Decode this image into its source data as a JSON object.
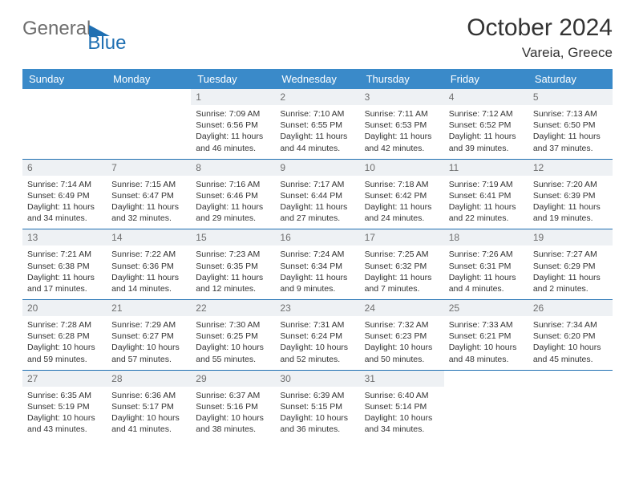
{
  "logo": {
    "word1": "General",
    "word2": "Blue"
  },
  "header": {
    "month_title": "October 2024",
    "location": "Vareia, Greece"
  },
  "calendar": {
    "weekday_labels": [
      "Sunday",
      "Monday",
      "Tuesday",
      "Wednesday",
      "Thursday",
      "Friday",
      "Saturday"
    ],
    "header_bg": "#3a8ac9",
    "header_text": "#ffffff",
    "daynum_bg": "#eef1f4",
    "border_color": "#1f6fb2",
    "cells": [
      null,
      null,
      {
        "n": "1",
        "sunrise": "Sunrise: 7:09 AM",
        "sunset": "Sunset: 6:56 PM",
        "day1": "Daylight: 11 hours",
        "day2": "and 46 minutes."
      },
      {
        "n": "2",
        "sunrise": "Sunrise: 7:10 AM",
        "sunset": "Sunset: 6:55 PM",
        "day1": "Daylight: 11 hours",
        "day2": "and 44 minutes."
      },
      {
        "n": "3",
        "sunrise": "Sunrise: 7:11 AM",
        "sunset": "Sunset: 6:53 PM",
        "day1": "Daylight: 11 hours",
        "day2": "and 42 minutes."
      },
      {
        "n": "4",
        "sunrise": "Sunrise: 7:12 AM",
        "sunset": "Sunset: 6:52 PM",
        "day1": "Daylight: 11 hours",
        "day2": "and 39 minutes."
      },
      {
        "n": "5",
        "sunrise": "Sunrise: 7:13 AM",
        "sunset": "Sunset: 6:50 PM",
        "day1": "Daylight: 11 hours",
        "day2": "and 37 minutes."
      },
      {
        "n": "6",
        "sunrise": "Sunrise: 7:14 AM",
        "sunset": "Sunset: 6:49 PM",
        "day1": "Daylight: 11 hours",
        "day2": "and 34 minutes."
      },
      {
        "n": "7",
        "sunrise": "Sunrise: 7:15 AM",
        "sunset": "Sunset: 6:47 PM",
        "day1": "Daylight: 11 hours",
        "day2": "and 32 minutes."
      },
      {
        "n": "8",
        "sunrise": "Sunrise: 7:16 AM",
        "sunset": "Sunset: 6:46 PM",
        "day1": "Daylight: 11 hours",
        "day2": "and 29 minutes."
      },
      {
        "n": "9",
        "sunrise": "Sunrise: 7:17 AM",
        "sunset": "Sunset: 6:44 PM",
        "day1": "Daylight: 11 hours",
        "day2": "and 27 minutes."
      },
      {
        "n": "10",
        "sunrise": "Sunrise: 7:18 AM",
        "sunset": "Sunset: 6:42 PM",
        "day1": "Daylight: 11 hours",
        "day2": "and 24 minutes."
      },
      {
        "n": "11",
        "sunrise": "Sunrise: 7:19 AM",
        "sunset": "Sunset: 6:41 PM",
        "day1": "Daylight: 11 hours",
        "day2": "and 22 minutes."
      },
      {
        "n": "12",
        "sunrise": "Sunrise: 7:20 AM",
        "sunset": "Sunset: 6:39 PM",
        "day1": "Daylight: 11 hours",
        "day2": "and 19 minutes."
      },
      {
        "n": "13",
        "sunrise": "Sunrise: 7:21 AM",
        "sunset": "Sunset: 6:38 PM",
        "day1": "Daylight: 11 hours",
        "day2": "and 17 minutes."
      },
      {
        "n": "14",
        "sunrise": "Sunrise: 7:22 AM",
        "sunset": "Sunset: 6:36 PM",
        "day1": "Daylight: 11 hours",
        "day2": "and 14 minutes."
      },
      {
        "n": "15",
        "sunrise": "Sunrise: 7:23 AM",
        "sunset": "Sunset: 6:35 PM",
        "day1": "Daylight: 11 hours",
        "day2": "and 12 minutes."
      },
      {
        "n": "16",
        "sunrise": "Sunrise: 7:24 AM",
        "sunset": "Sunset: 6:34 PM",
        "day1": "Daylight: 11 hours",
        "day2": "and 9 minutes."
      },
      {
        "n": "17",
        "sunrise": "Sunrise: 7:25 AM",
        "sunset": "Sunset: 6:32 PM",
        "day1": "Daylight: 11 hours",
        "day2": "and 7 minutes."
      },
      {
        "n": "18",
        "sunrise": "Sunrise: 7:26 AM",
        "sunset": "Sunset: 6:31 PM",
        "day1": "Daylight: 11 hours",
        "day2": "and 4 minutes."
      },
      {
        "n": "19",
        "sunrise": "Sunrise: 7:27 AM",
        "sunset": "Sunset: 6:29 PM",
        "day1": "Daylight: 11 hours",
        "day2": "and 2 minutes."
      },
      {
        "n": "20",
        "sunrise": "Sunrise: 7:28 AM",
        "sunset": "Sunset: 6:28 PM",
        "day1": "Daylight: 10 hours",
        "day2": "and 59 minutes."
      },
      {
        "n": "21",
        "sunrise": "Sunrise: 7:29 AM",
        "sunset": "Sunset: 6:27 PM",
        "day1": "Daylight: 10 hours",
        "day2": "and 57 minutes."
      },
      {
        "n": "22",
        "sunrise": "Sunrise: 7:30 AM",
        "sunset": "Sunset: 6:25 PM",
        "day1": "Daylight: 10 hours",
        "day2": "and 55 minutes."
      },
      {
        "n": "23",
        "sunrise": "Sunrise: 7:31 AM",
        "sunset": "Sunset: 6:24 PM",
        "day1": "Daylight: 10 hours",
        "day2": "and 52 minutes."
      },
      {
        "n": "24",
        "sunrise": "Sunrise: 7:32 AM",
        "sunset": "Sunset: 6:23 PM",
        "day1": "Daylight: 10 hours",
        "day2": "and 50 minutes."
      },
      {
        "n": "25",
        "sunrise": "Sunrise: 7:33 AM",
        "sunset": "Sunset: 6:21 PM",
        "day1": "Daylight: 10 hours",
        "day2": "and 48 minutes."
      },
      {
        "n": "26",
        "sunrise": "Sunrise: 7:34 AM",
        "sunset": "Sunset: 6:20 PM",
        "day1": "Daylight: 10 hours",
        "day2": "and 45 minutes."
      },
      {
        "n": "27",
        "sunrise": "Sunrise: 6:35 AM",
        "sunset": "Sunset: 5:19 PM",
        "day1": "Daylight: 10 hours",
        "day2": "and 43 minutes."
      },
      {
        "n": "28",
        "sunrise": "Sunrise: 6:36 AM",
        "sunset": "Sunset: 5:17 PM",
        "day1": "Daylight: 10 hours",
        "day2": "and 41 minutes."
      },
      {
        "n": "29",
        "sunrise": "Sunrise: 6:37 AM",
        "sunset": "Sunset: 5:16 PM",
        "day1": "Daylight: 10 hours",
        "day2": "and 38 minutes."
      },
      {
        "n": "30",
        "sunrise": "Sunrise: 6:39 AM",
        "sunset": "Sunset: 5:15 PM",
        "day1": "Daylight: 10 hours",
        "day2": "and 36 minutes."
      },
      {
        "n": "31",
        "sunrise": "Sunrise: 6:40 AM",
        "sunset": "Sunset: 5:14 PM",
        "day1": "Daylight: 10 hours",
        "day2": "and 34 minutes."
      },
      null,
      null
    ]
  }
}
